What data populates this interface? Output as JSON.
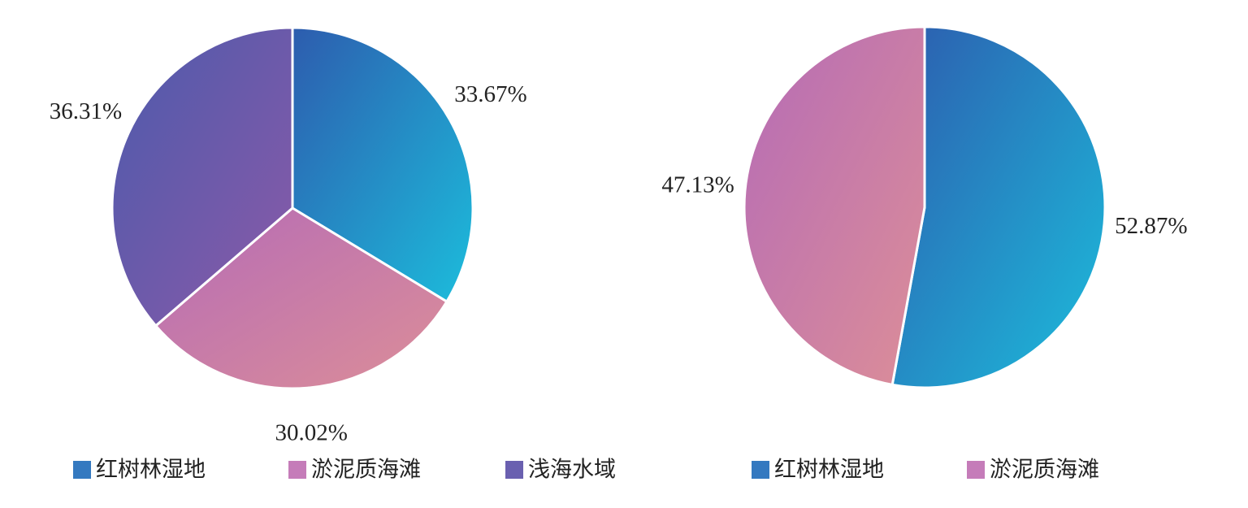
{
  "chart_data": [
    {
      "type": "pie",
      "categories": [
        "红树林湿地",
        "淤泥质海滩",
        "浅海水域"
      ],
      "values": [
        33.67,
        30.02,
        36.31
      ],
      "value_labels": [
        "33.67%",
        "30.02%",
        "36.31%"
      ],
      "colors": [
        "#3479c0",
        "#c57cb9",
        "#6a60b0"
      ],
      "gradients": [
        [
          "#2d5cae",
          "#1cbddc"
        ],
        [
          "#b56bb6",
          "#dc8e98"
        ],
        [
          "#4c5aac",
          "#8b5aa8"
        ]
      ]
    },
    {
      "type": "pie",
      "categories": [
        "红树林湿地",
        "淤泥质海滩"
      ],
      "values": [
        52.87,
        47.13
      ],
      "value_labels": [
        "52.87%",
        "47.13%"
      ],
      "colors": [
        "#3479c0",
        "#c57cb9"
      ],
      "gradients": [
        [
          "#2d5cae",
          "#1cbddc"
        ],
        [
          "#b56bb6",
          "#dc8e98"
        ]
      ]
    }
  ]
}
